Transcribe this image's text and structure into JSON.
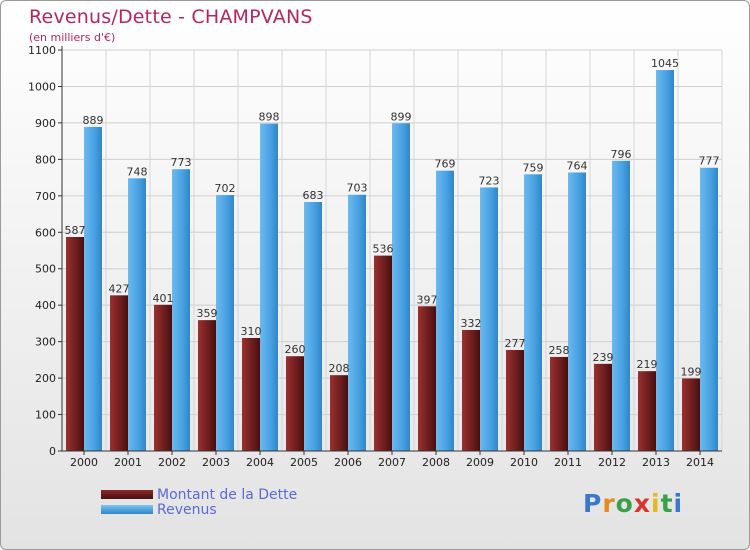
{
  "title": "Revenus/Dette - CHAMPVANS",
  "subtitle": "(en milliers d'€)",
  "logo": "Proxiti",
  "chart_data": {
    "type": "bar",
    "categories": [
      "2000",
      "2001",
      "2002",
      "2003",
      "2004",
      "2005",
      "2006",
      "2007",
      "2008",
      "2009",
      "2010",
      "2011",
      "2012",
      "2013",
      "2014"
    ],
    "ylim": [
      0,
      1100
    ],
    "yticks": [
      0,
      100,
      200,
      300,
      400,
      500,
      600,
      700,
      800,
      900,
      1000,
      1100
    ],
    "grid": true,
    "legend": "bottom-left",
    "series": [
      {
        "name": "Montant de la Dette",
        "color": "#6a1a1a",
        "values": [
          587,
          427,
          401,
          359,
          310,
          260,
          208,
          536,
          397,
          332,
          277,
          258,
          239,
          219,
          199
        ]
      },
      {
        "name": "Revenus",
        "color": "#4ea6e6",
        "values": [
          889,
          748,
          773,
          702,
          898,
          683,
          703,
          899,
          769,
          723,
          759,
          764,
          796,
          1045,
          777
        ]
      }
    ]
  }
}
